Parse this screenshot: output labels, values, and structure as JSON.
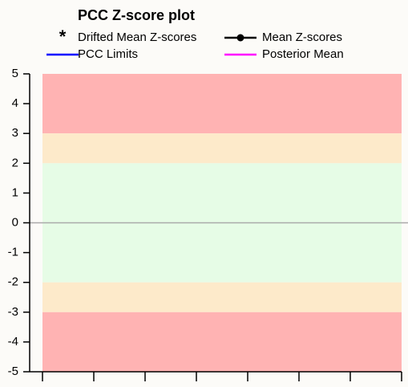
{
  "chart_data": {
    "type": "line",
    "title": "PCC Z-score plot",
    "categories": [
      null,
      null,
      null,
      null,
      null,
      null,
      null,
      null
    ],
    "series": [
      {
        "name": "Drifted Mean Z-scores",
        "color": "#0000ff",
        "marker": "asterisk",
        "values": [
          null,
          null,
          null,
          null,
          null,
          null,
          null,
          null
        ]
      },
      {
        "name": "Mean Z-scores",
        "color": "#000000",
        "marker": "dot-line",
        "values": [
          null,
          null,
          null,
          null,
          null,
          null,
          null,
          null
        ]
      },
      {
        "name": "PCC Limits",
        "color": "#0000ff",
        "marker": "line",
        "values": [
          null,
          null,
          null,
          null,
          null,
          null,
          null,
          null
        ]
      },
      {
        "name": "Posterior Mean",
        "color": "#ff00ff",
        "marker": "line",
        "values": [
          null,
          null,
          null,
          null,
          null,
          null,
          null,
          null
        ]
      }
    ],
    "bands": [
      {
        "from": 3,
        "to": 5,
        "color": "#ffb3b3"
      },
      {
        "from": 2,
        "to": 3,
        "color": "#fdeaca"
      },
      {
        "from": -2,
        "to": 2,
        "color": "#e6fce6"
      },
      {
        "from": -3,
        "to": -2,
        "color": "#fdeaca"
      },
      {
        "from": -5,
        "to": -3,
        "color": "#ffb3b3"
      }
    ],
    "hline": {
      "value": 0,
      "color": "#aaaaaa"
    },
    "ylim": [
      -5,
      5
    ],
    "yticks": [
      -5,
      -4,
      -3,
      -2,
      -1,
      0,
      1,
      2,
      3,
      4,
      5
    ]
  }
}
